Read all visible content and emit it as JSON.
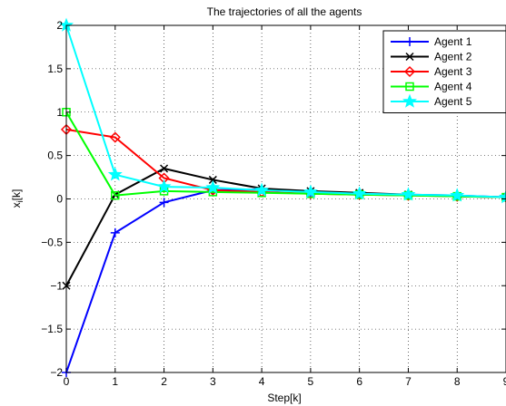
{
  "chart_data": {
    "type": "line",
    "title": "The trajectories of all the agents",
    "xlabel": "Step[k]",
    "ylabel": "x_i[k]",
    "xlim": [
      0,
      9
    ],
    "ylim": [
      -2,
      2
    ],
    "grid": true,
    "legend_position": "top-right",
    "x": [
      0,
      1,
      2,
      3,
      4,
      5,
      6,
      7,
      8,
      9
    ],
    "x_ticks": [
      "0",
      "1",
      "2",
      "3",
      "4",
      "5",
      "6",
      "7",
      "8",
      "9"
    ],
    "y_ticks": [
      "−2",
      "−1.5",
      "−1",
      "−0.5",
      "0",
      "0.5",
      "1",
      "1.5",
      "2"
    ],
    "series": [
      {
        "name": "Agent 1",
        "color": "#0000ff",
        "marker": "plus",
        "values": [
          -2,
          -0.39,
          -0.04,
          0.1,
          0.11,
          0.08,
          0.06,
          0.05,
          0.04,
          0.02
        ]
      },
      {
        "name": "Agent 2",
        "color": "#000000",
        "marker": "x",
        "values": [
          -1,
          0.05,
          0.35,
          0.22,
          0.12,
          0.09,
          0.07,
          0.05,
          0.03,
          0.02
        ]
      },
      {
        "name": "Agent 3",
        "color": "#ff0000",
        "marker": "diamond",
        "values": [
          0.8,
          0.71,
          0.24,
          0.1,
          0.08,
          0.06,
          0.05,
          0.04,
          0.03,
          0.02
        ]
      },
      {
        "name": "Agent 4",
        "color": "#00ff00",
        "marker": "square",
        "values": [
          1,
          0.04,
          0.09,
          0.08,
          0.07,
          0.06,
          0.05,
          0.04,
          0.03,
          0.02
        ]
      },
      {
        "name": "Agent 5",
        "color": "#00ffff",
        "marker": "star",
        "values": [
          2,
          0.28,
          0.14,
          0.13,
          0.1,
          0.08,
          0.06,
          0.05,
          0.04,
          0.02
        ]
      }
    ]
  }
}
